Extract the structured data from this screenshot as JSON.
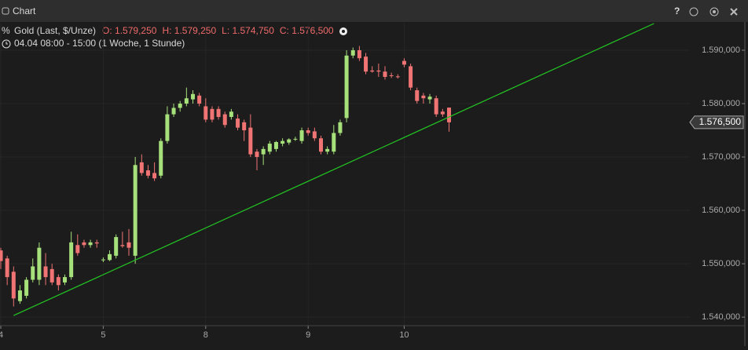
{
  "window_title": "Chart",
  "chart_data": {
    "type": "candlestick",
    "title": "Gold (Last, $/Unze)",
    "ohlc_labels": [
      "O: 1.579,250",
      "H: 1.579,250",
      "L: 1.574,750",
      "C: 1.576,500"
    ],
    "subtitle": "04.04 08:00 - 15:00 (1 Woche, 1 Stunde)",
    "categories": [
      "4",
      null,
      null,
      null,
      null,
      null,
      null,
      null,
      null,
      null,
      null,
      null,
      null,
      null,
      null,
      null,
      "5",
      null,
      null,
      null,
      null,
      null,
      null,
      null,
      null,
      null,
      null,
      null,
      null,
      null,
      null,
      null,
      "8",
      null,
      null,
      null,
      null,
      null,
      null,
      null,
      null,
      null,
      null,
      null,
      null,
      null,
      null,
      null,
      "9",
      null,
      null,
      null,
      null,
      null,
      null,
      null,
      null,
      null,
      null,
      null,
      null,
      null,
      null,
      "10",
      null,
      null,
      null,
      null,
      null,
      null,
      null
    ],
    "open": [
      1552500,
      1551000,
      1548500,
      1543000,
      1544000,
      1547000,
      1547000,
      1549500,
      1549000,
      1547500,
      1546500,
      1547500,
      1553500,
      1554000,
      1553500,
      1554000,
      1550700,
      1550700,
      1551500,
      1553500,
      1554000,
      1551500,
      1569000,
      1567500,
      1567000,
      1566500,
      1573000,
      1578000,
      1579200,
      1580000,
      1580800,
      1581500,
      1579500,
      1579000,
      1579000,
      1578000,
      1577500,
      1577200,
      1576500,
      1575500,
      1571000,
      1570500,
      1571000,
      1571500,
      1572500,
      1572700,
      1573300,
      1573000,
      1575000,
      1574800,
      1573500,
      1571000,
      1571000,
      1574500,
      1577300,
      1589000,
      1590000,
      1588800,
      1586200,
      1586200,
      1586000,
      1585300,
      1585100,
      1588000,
      1587000,
      1582500,
      1581500,
      1580800,
      1581000,
      1578500,
      1579250
    ],
    "high": [
      1553000,
      1551500,
      1549500,
      1546000,
      1547500,
      1551000,
      1554000,
      1552000,
      1550000,
      1548000,
      1548000,
      1556000,
      1555500,
      1554500,
      1554500,
      1554500,
      1551200,
      1552500,
      1555500,
      1556000,
      1556500,
      1570000,
      1570500,
      1568500,
      1569000,
      1573500,
      1579500,
      1580000,
      1580500,
      1583000,
      1582500,
      1582000,
      1581000,
      1579500,
      1579500,
      1578500,
      1579000,
      1578000,
      1577000,
      1578000,
      1571500,
      1572000,
      1573000,
      1573000,
      1573500,
      1573500,
      1573800,
      1575500,
      1575500,
      1575500,
      1574000,
      1572000,
      1576000,
      1577000,
      1590000,
      1590500,
      1590800,
      1589500,
      1587000,
      1587500,
      1587000,
      1585800,
      1585500,
      1588500,
      1587500,
      1583000,
      1582000,
      1581800,
      1581500,
      1579000,
      1579250
    ],
    "low": [
      1549000,
      1546000,
      1542000,
      1542500,
      1543500,
      1546500,
      1546000,
      1546000,
      1546000,
      1545000,
      1546000,
      1547000,
      1551500,
      1553000,
      1553000,
      1553000,
      1550300,
      1550500,
      1551000,
      1553000,
      1551500,
      1550000,
      1566500,
      1566000,
      1565500,
      1566000,
      1572500,
      1577500,
      1578500,
      1579500,
      1580000,
      1579500,
      1576500,
      1576500,
      1577000,
      1575500,
      1577000,
      1575000,
      1573000,
      1570000,
      1567500,
      1568500,
      1570500,
      1571000,
      1572000,
      1572300,
      1573000,
      1572500,
      1574000,
      1573000,
      1570500,
      1570500,
      1570500,
      1574000,
      1576500,
      1588500,
      1588000,
      1585500,
      1585800,
      1585000,
      1584500,
      1584800,
      1584700,
      1586800,
      1582500,
      1580000,
      1580000,
      1580000,
      1577500,
      1577500,
      1574750
    ],
    "close": [
      1550500,
      1547500,
      1543500,
      1545000,
      1547000,
      1549500,
      1553000,
      1547500,
      1546500,
      1546000,
      1547500,
      1554000,
      1552000,
      1553500,
      1554000,
      1553800,
      1550800,
      1551800,
      1555000,
      1553300,
      1553000,
      1568500,
      1567000,
      1566500,
      1566000,
      1573000,
      1578000,
      1579200,
      1580000,
      1581000,
      1581800,
      1580000,
      1577000,
      1577000,
      1577500,
      1576000,
      1578500,
      1575500,
      1575000,
      1570500,
      1570000,
      1571500,
      1572500,
      1572800,
      1573000,
      1573300,
      1573400,
      1575000,
      1574500,
      1573500,
      1571000,
      1571500,
      1574500,
      1576500,
      1589000,
      1590000,
      1588500,
      1586000,
      1586000,
      1586000,
      1585000,
      1585200,
      1585000,
      1587300,
      1583000,
      1580500,
      1581000,
      1581300,
      1578000,
      1578000,
      1576500
    ],
    "up_color": "#a6e07a",
    "down_color": "#f07474",
    "ylim": [
      1538400,
      1595000
    ],
    "yticks": [
      {
        "value": 1540000,
        "label": "1.540,000"
      },
      {
        "value": 1550000,
        "label": "1.550,000"
      },
      {
        "value": 1560000,
        "label": "1.560,000"
      },
      {
        "value": 1570000,
        "label": "1.570,000"
      },
      {
        "value": 1580000,
        "label": "1.580,000"
      },
      {
        "value": 1590000,
        "label": "1.590,000"
      }
    ],
    "last_price": {
      "value": 1576500,
      "label": "1.576,500"
    },
    "trendline": {
      "x": [
        2,
        102
      ],
      "values": [
        1540300,
        1595000
      ],
      "color": "#22c822"
    },
    "grid": true
  }
}
